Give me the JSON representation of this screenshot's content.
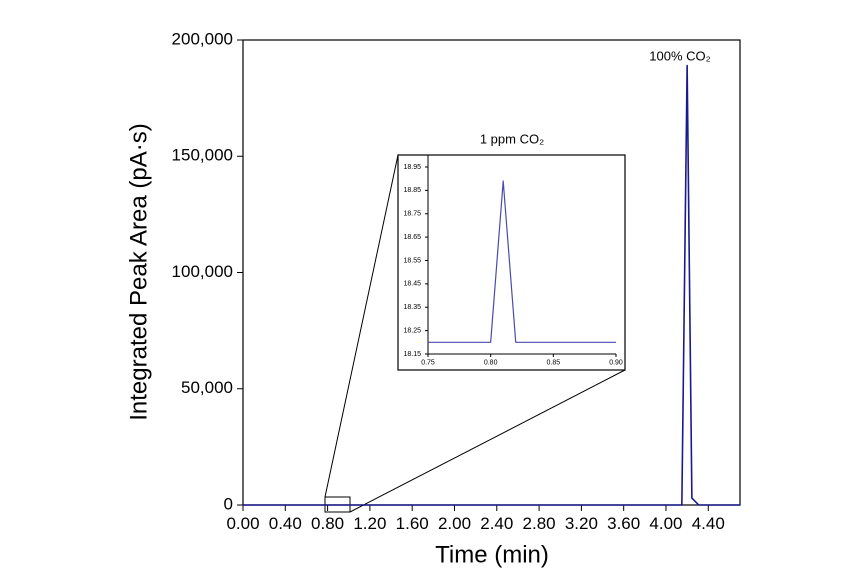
{
  "chart_data": [
    {
      "type": "line",
      "annotation": "100% CO₂",
      "x_label": "Time (min)",
      "y_label": "Integrated Peak Area (pA·s)",
      "series": [
        {
          "color": "#1a1a8c",
          "x": [
            0,
            4.15,
            4.2,
            4.245,
            4.31,
            4.7
          ],
          "values": [
            0,
            0,
            189000,
            3000,
            0,
            0
          ]
        }
      ],
      "xlim": [
        0,
        4.7
      ],
      "xticks": [
        {
          "value": 0,
          "label": "0.00"
        },
        {
          "value": 0.4,
          "label": "0.40"
        },
        {
          "value": 0.8,
          "label": "0.80"
        },
        {
          "value": 1.2,
          "label": "1.20"
        },
        {
          "value": 1.6,
          "label": "1.60"
        },
        {
          "value": 2,
          "label": "2.00"
        },
        {
          "value": 2.4,
          "label": "2.40"
        },
        {
          "value": 2.8,
          "label": "2.80"
        },
        {
          "value": 3.2,
          "label": "3.20"
        },
        {
          "value": 3.6,
          "label": "3.60"
        },
        {
          "value": 4,
          "label": "4.00"
        },
        {
          "value": 4.4,
          "label": "4.40"
        }
      ],
      "ylim": [
        0,
        200000
      ],
      "yticks": [
        0,
        {
          "value": 50000,
          "label": "50,000"
        },
        {
          "value": 100000,
          "label": "100,000"
        },
        {
          "value": 150000,
          "label": "150,000"
        },
        {
          "value": 200000,
          "label": "200,000"
        }
      ]
    },
    {
      "type": "line",
      "title": "1 ppm CO₂",
      "series": [
        {
          "color": "#4a4ab0",
          "x": [
            0.75,
            0.8,
            0.81,
            0.82,
            0.9
          ],
          "values": [
            18.2,
            18.2,
            18.89,
            18.2,
            18.2
          ]
        }
      ],
      "xlim": [
        0.75,
        0.9
      ],
      "xticks": [
        0.75,
        {
          "value": 0.8,
          "label": "0.80"
        },
        0.85,
        {
          "value": 0.9,
          "label": "0.90"
        }
      ],
      "ylim": [
        18.15,
        18.95
      ],
      "yticks": [
        18.15,
        18.25,
        18.35,
        18.45,
        18.55,
        18.65,
        18.75,
        18.85,
        18.95
      ]
    }
  ]
}
